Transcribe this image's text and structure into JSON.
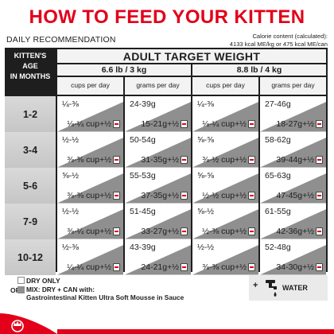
{
  "title": "HOW TO FEED YOUR KITTEN",
  "daily_label": "DAILY RECOMMENDATION",
  "calorie": {
    "line1": "Calorie content (calculated):",
    "line2": "4133 kcal ME/kg or 475 kcal ME/can"
  },
  "table": {
    "age_header": [
      "KITTEN'S",
      "AGE",
      "IN MONTHS"
    ],
    "adult_header": "ADULT TARGET WEIGHT",
    "weights": [
      "6.6 lb / 3 kg",
      "8.8 lb / 4 kg"
    ],
    "sub_headers": [
      "cups per day",
      "grams per day",
      "cups per day",
      "grams per day"
    ],
    "rows": [
      {
        "age": "1-2",
        "cells": [
          {
            "dry": "¼-⅜",
            "mix": "⅛-¼ cup+½"
          },
          {
            "dry": "24-39g",
            "mix": "15-21g+½"
          },
          {
            "dry": "¼-⅜",
            "mix": "⅛-¼ cup+½"
          },
          {
            "dry": "27-46g",
            "mix": "18-27g+½"
          }
        ]
      },
      {
        "age": "3-4",
        "cells": [
          {
            "dry": "½-½",
            "mix": "⅜-⅜ cup+½"
          },
          {
            "dry": "50-54g",
            "mix": "31-35g+½"
          },
          {
            "dry": "⅝-⅝",
            "mix": "⅜-½ cup+½"
          },
          {
            "dry": "58-62g",
            "mix": "39-44g+½"
          }
        ]
      },
      {
        "age": "5-6",
        "cells": [
          {
            "dry": "⅝-½",
            "mix": "⅜-⅜ cup+½"
          },
          {
            "dry": "55-53g",
            "mix": "37-35g+½"
          },
          {
            "dry": "⅝-⅝",
            "mix": "½-½ cup+½"
          },
          {
            "dry": "65-63g",
            "mix": "47-45g+½"
          }
        ]
      },
      {
        "age": "7-9",
        "cells": [
          {
            "dry": "½-½",
            "mix": "⅜-¼ cup+½"
          },
          {
            "dry": "51-45g",
            "mix": "33-27g+½"
          },
          {
            "dry": "⅝-½",
            "mix": "½-⅜ cup+½"
          },
          {
            "dry": "61-55g",
            "mix": "42-36g+½"
          }
        ]
      },
      {
        "age": "10-12",
        "cells": [
          {
            "dry": "½-⅜",
            "mix": "¼-¼ cup+½"
          },
          {
            "dry": "43-39g",
            "mix": "24-21g+½"
          },
          {
            "dry": "½-½",
            "mix": "⅜-⅜ cup+½"
          },
          {
            "dry": "52-48g",
            "mix": "34-30g+½"
          }
        ]
      }
    ]
  },
  "legend": {
    "dry_only": "DRY ONLY",
    "or": "OR",
    "mix_line1": "MIX: DRY + CAN with:",
    "mix_line2": "Gastrointestinal Kitten Ultra Soft Mousse in Sauce",
    "plus": "+",
    "water": "WATER"
  },
  "colors": {
    "accent_red": "#e2001a",
    "table_dark": "#1e1e1e",
    "mix_gray": "#8f8f8f"
  },
  "icons": [
    "can-icon",
    "water-tap-icon",
    "royal-canin-crown-logo"
  ]
}
